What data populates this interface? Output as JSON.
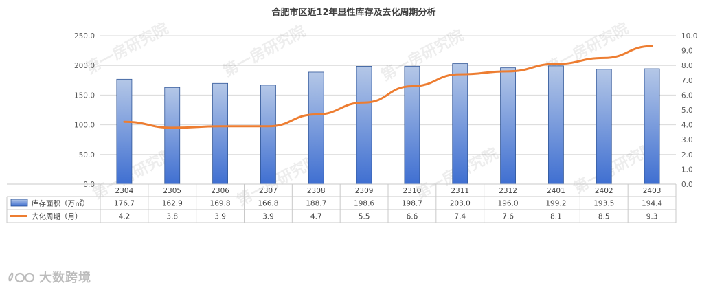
{
  "chart_data": {
    "type": "bar+line",
    "title": "合肥市区近12年显性库存及去化周期分析",
    "categories": [
      "2304",
      "2305",
      "2306",
      "2307",
      "2308",
      "2309",
      "2310",
      "2311",
      "2312",
      "2401",
      "2402",
      "2403"
    ],
    "series": [
      {
        "name": "库存面积（万㎡）",
        "type": "bar",
        "axis": "left",
        "values": [
          176.7,
          162.9,
          169.8,
          166.8,
          188.7,
          198.6,
          198.7,
          203.0,
          196.0,
          199.2,
          193.5,
          194.4
        ]
      },
      {
        "name": "去化周期（月）",
        "type": "line",
        "axis": "right",
        "values": [
          4.2,
          3.8,
          3.9,
          3.9,
          4.7,
          5.5,
          6.6,
          7.4,
          7.6,
          8.1,
          8.5,
          9.3
        ]
      }
    ],
    "ylim_left": [
      0,
      250
    ],
    "yticks_left": [
      "0.0",
      "50.0",
      "100.0",
      "150.0",
      "200.0",
      "250.0"
    ],
    "ylim_right": [
      0,
      10
    ],
    "yticks_right": [
      "0.0",
      "1.0",
      "2.0",
      "3.0",
      "4.0",
      "5.0",
      "6.0",
      "7.0",
      "8.0",
      "9.0",
      "10.0"
    ],
    "table": {
      "rows": [
        {
          "label": "库存面积（万㎡）",
          "cells": [
            "176.7",
            "162.9",
            "169.8",
            "166.8",
            "188.7",
            "198.6",
            "198.7",
            "203.0",
            "196.0",
            "199.2",
            "193.5",
            "194.4"
          ]
        },
        {
          "label": "去化周期（月）",
          "cells": [
            "4.2",
            "3.8",
            "3.9",
            "3.9",
            "4.7",
            "5.5",
            "6.6",
            "7.4",
            "7.6",
            "8.1",
            "8.5",
            "9.3"
          ]
        }
      ]
    },
    "watermark": "第一房研究院",
    "colors": {
      "bar_top": "#b4c7e7",
      "bar_bottom": "#3f6fd1",
      "bar_border": "#2f5597",
      "line": "#ed7d31",
      "grid": "#d9d9d9"
    }
  },
  "brand": {
    "name": "大数跨境"
  }
}
